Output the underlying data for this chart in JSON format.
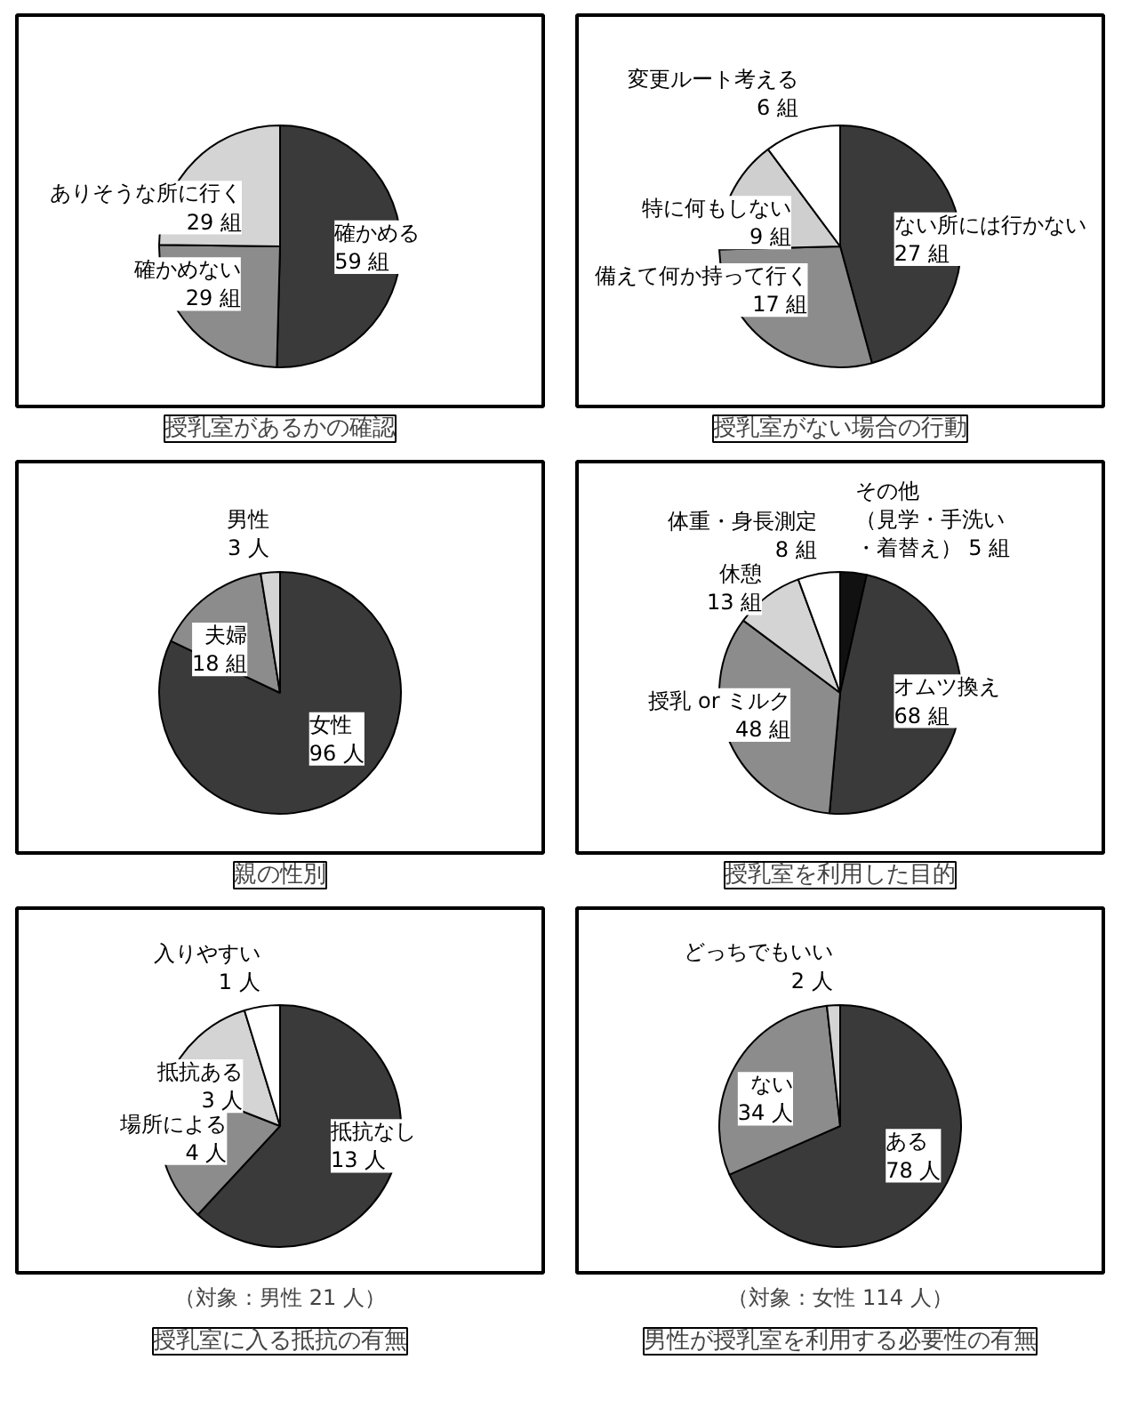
{
  "chart_data": [
    {
      "type": "pie",
      "title": "授乳室があるかの確認",
      "categories": [
        "確かめる",
        "確かめない",
        "ありそうな所に行く"
      ],
      "values": [
        59,
        29,
        29
      ],
      "value_labels": [
        "59 組",
        "29 組",
        "29 組"
      ],
      "colors": [
        "#3a3a3a",
        "#8c8c8c",
        "#d4d4d4"
      ],
      "legend": false
    },
    {
      "type": "pie",
      "title": "授乳室がない場合の行動",
      "categories": [
        "ない所には行かない",
        "備えて何か持って行く",
        "特に何もしない",
        "変更ルート考える"
      ],
      "values": [
        27,
        17,
        9,
        6
      ],
      "value_labels": [
        "27 組",
        "17 組",
        "9 組",
        "6 組"
      ],
      "colors": [
        "#3a3a3a",
        "#8c8c8c",
        "#cfcfcf",
        "#ffffff"
      ],
      "legend": false
    },
    {
      "type": "pie",
      "title": "親の性別",
      "categories": [
        "女性",
        "夫婦",
        "男性"
      ],
      "values": [
        96,
        18,
        3
      ],
      "value_labels": [
        "96 人",
        "18 組",
        "3 人"
      ],
      "colors": [
        "#3a3a3a",
        "#8c8c8c",
        "#d4d4d4"
      ],
      "legend": false
    },
    {
      "type": "pie",
      "title": "授乳室を利用した目的",
      "categories": [
        "その他（見学・手洗い・着替え）",
        "オムツ換え",
        "授乳 or ミルク",
        "休憩",
        "体重・身長測定"
      ],
      "values": [
        5,
        68,
        48,
        13,
        8
      ],
      "value_labels": [
        "5 組",
        "68 組",
        "48 組",
        "13 組",
        "8 組"
      ],
      "colors": [
        "#111111",
        "#3a3a3a",
        "#8c8c8c",
        "#d4d4d4",
        "#ffffff"
      ],
      "legend": false
    },
    {
      "type": "pie",
      "title": "授乳室に入る抵抗の有無",
      "subtitle": "（対象：男性 21 人）",
      "categories": [
        "抵抗なし",
        "場所による",
        "抵抗ある",
        "入りやすい"
      ],
      "values": [
        13,
        4,
        3,
        1
      ],
      "value_labels": [
        "13 人",
        "4 人",
        "3 人",
        "1 人"
      ],
      "colors": [
        "#3a3a3a",
        "#8c8c8c",
        "#d4d4d4",
        "#ffffff"
      ],
      "legend": false
    },
    {
      "type": "pie",
      "title": "男性が授乳室を利用する必要性の有無",
      "subtitle": "（対象：女性 114 人）",
      "categories": [
        "ある",
        "ない",
        "どっちでもいい"
      ],
      "values": [
        78,
        34,
        2
      ],
      "value_labels": [
        "78 人",
        "34 人",
        "2 人"
      ],
      "colors": [
        "#3a3a3a",
        "#8c8c8c",
        "#d4d4d4"
      ],
      "legend": false
    }
  ]
}
